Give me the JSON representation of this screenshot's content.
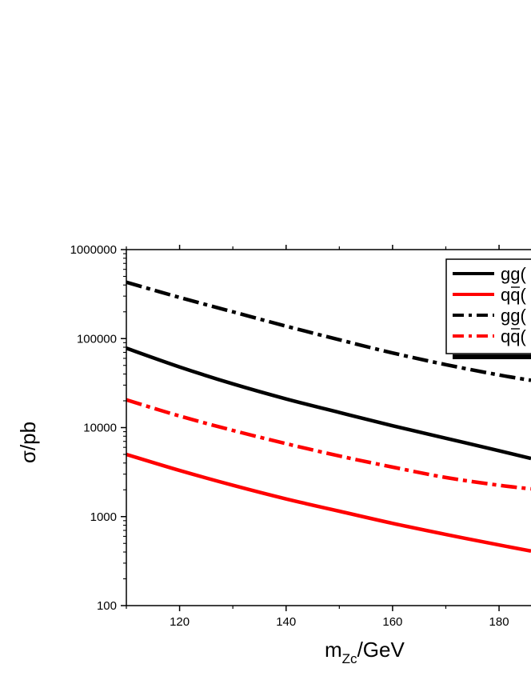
{
  "chart_data": {
    "type": "line",
    "title": "",
    "xlabel": "m",
    "xlabel_sub": "Zc",
    "xlabel_unit": "/GeV",
    "ylabel": "σ/pb",
    "yscale": "log",
    "xlim": [
      110,
      186
    ],
    "ylim": [
      100,
      1000000
    ],
    "xticks": [
      120,
      140,
      160,
      180
    ],
    "xtick_labels": [
      "120",
      "140",
      "160",
      "180"
    ],
    "yticks": [
      100,
      1000,
      10000,
      100000,
      1000000
    ],
    "ytick_labels": [
      "100",
      "1000",
      "10000",
      "100000",
      "1000000"
    ],
    "grid": false,
    "legend_position": "top-right",
    "x": [
      110,
      120,
      130,
      140,
      150,
      160,
      170,
      180,
      186
    ],
    "series": [
      {
        "name": "gg(",
        "color": "#000000",
        "dash": "solid",
        "values": [
          78000,
          48000,
          31000,
          21000,
          14800,
          10500,
          7600,
          5500,
          4500
        ]
      },
      {
        "name": "qq(",
        "color": "#ff0000",
        "dash": "solid",
        "values": [
          5000,
          3300,
          2250,
          1580,
          1150,
          840,
          630,
          480,
          410
        ]
      },
      {
        "name": "gg(",
        "color": "#000000",
        "dash": "dashdot",
        "values": [
          430000,
          290000,
          200000,
          138000,
          97000,
          69000,
          51000,
          39000,
          34000
        ]
      },
      {
        "name": "qq(",
        "color": "#ff0000",
        "dash": "dashdot",
        "values": [
          20500,
          13500,
          9300,
          6600,
          4800,
          3600,
          2750,
          2250,
          2050
        ]
      }
    ]
  }
}
